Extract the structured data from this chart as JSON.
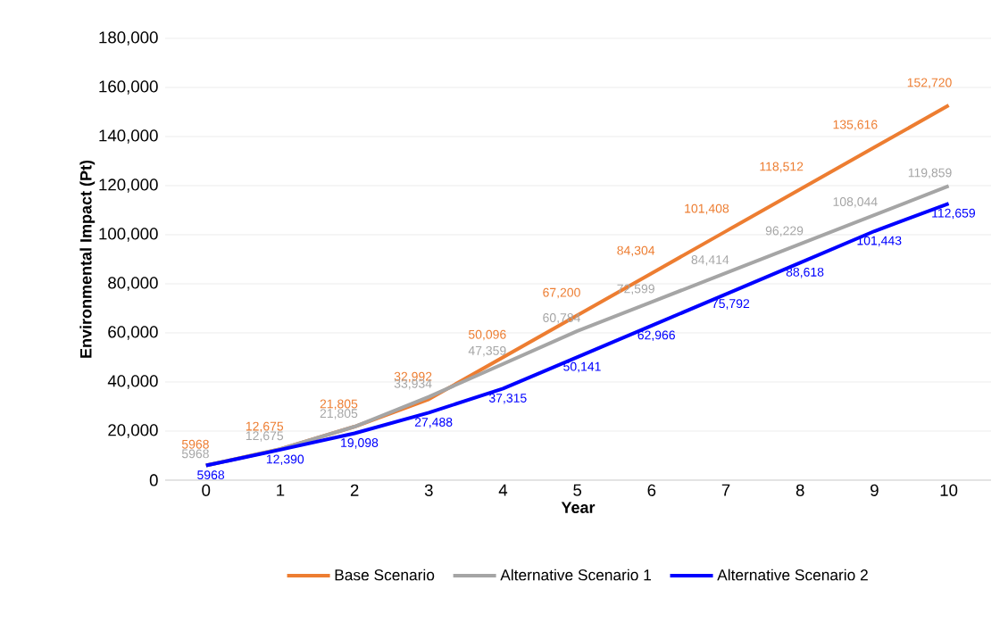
{
  "chart_data": {
    "type": "line",
    "xlabel": "Year",
    "ylabel": "Environmental Impact (Pt)",
    "categories": [
      "0",
      "1",
      "2",
      "3",
      "4",
      "5",
      "6",
      "7",
      "8",
      "9",
      "10"
    ],
    "ylim": [
      0,
      180000
    ],
    "yticks": [
      0,
      {
        "value": 20000,
        "label": "20,000"
      },
      {
        "value": 40000,
        "label": "40,000"
      },
      {
        "value": 60000,
        "label": "60,000"
      },
      {
        "value": 80000,
        "label": "80,000"
      },
      {
        "value": 100000,
        "label": "100,000"
      },
      {
        "value": 120000,
        "label": "120,000"
      },
      {
        "value": 140000,
        "label": "140,000"
      },
      {
        "value": 160000,
        "label": "160,000"
      },
      {
        "value": 180000,
        "label": "180,000"
      }
    ],
    "grid": "y",
    "legend": "bottom",
    "series": [
      {
        "name": "Base Scenario",
        "color": "#ed7d31",
        "values": [
          5968,
          12675,
          21805,
          32992,
          50096,
          67200,
          84304,
          101408,
          118512,
          135616,
          152720
        ],
        "value_labels": [
          "5968",
          "12,675",
          "21,805",
          "32,992",
          "50,096",
          "67,200",
          "84,304",
          "101,408",
          "118,512",
          "135,616",
          "152,720"
        ]
      },
      {
        "name": "Alternative Scenario 1",
        "color": "#a5a5a5",
        "values": [
          5968,
          12675,
          21805,
          33934,
          47359,
          60784,
          72599,
          84414,
          96229,
          108044,
          119859
        ],
        "value_labels": [
          "5968",
          "12,675",
          "21,805",
          "33,934",
          "47,359",
          "60,784",
          "72,599",
          "84,414",
          "96,229",
          "108,044",
          "119,859"
        ]
      },
      {
        "name": "Alternative Scenario 2",
        "color": "#0000ff",
        "values": [
          5968,
          12390,
          19098,
          27488,
          37315,
          50141,
          62966,
          75792,
          88618,
          101443,
          112659
        ],
        "value_labels": [
          "5968",
          "12,390",
          "19,098",
          "27,488",
          "37,315",
          "50,141",
          "62,966",
          "75,792",
          "88,618",
          "101,443",
          "112,659"
        ]
      }
    ]
  }
}
